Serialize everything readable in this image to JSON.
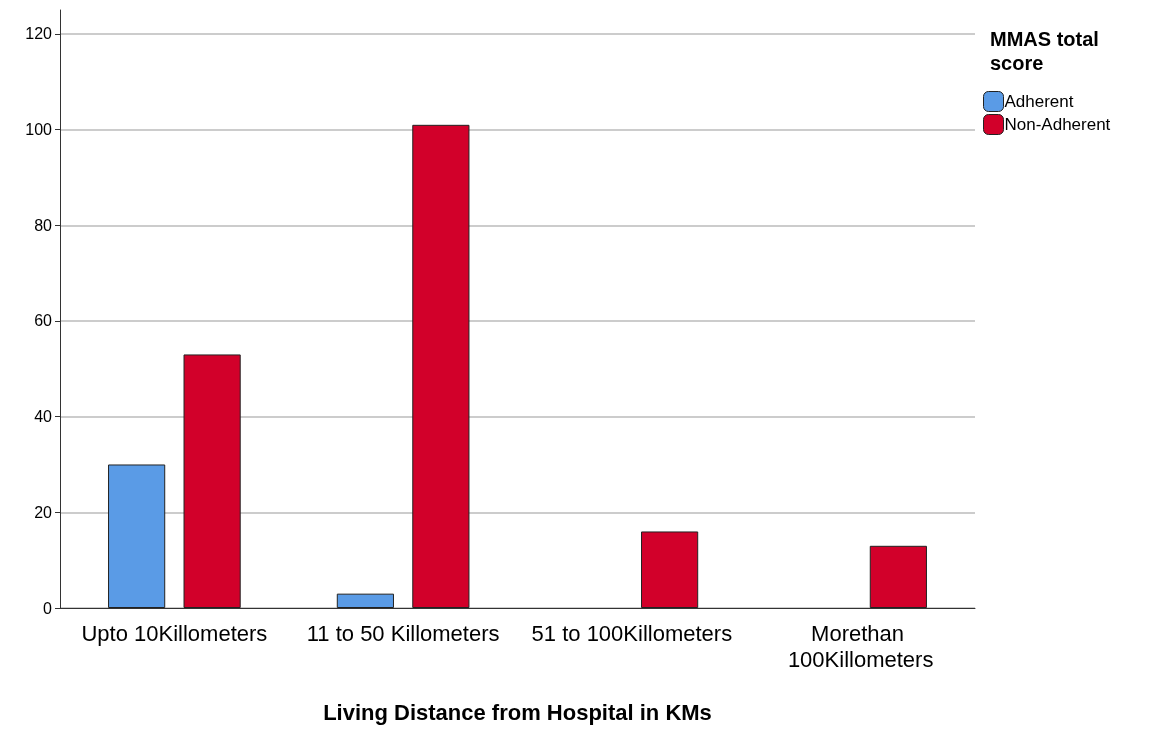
{
  "chart_data": {
    "type": "bar",
    "xlabel": "Living Distance from Hospital in KMs",
    "legend_title": "MMAS total score",
    "categories": [
      "Upto 10Killometers",
      "11 to 50 Killometers",
      "51 to 100Killometers",
      "Morethan 100Killometers"
    ],
    "series": [
      {
        "name": "Adherent",
        "color": "#5a9be6",
        "values": [
          30,
          3,
          null,
          null
        ]
      },
      {
        "name": "Non-Adherent",
        "color": "#d2002a",
        "values": [
          53,
          101,
          16,
          13
        ]
      }
    ],
    "ylim": [
      0,
      125
    ],
    "yticks": [
      0,
      20,
      40,
      60,
      80,
      100,
      120
    ],
    "grid": "y",
    "legend": "top right"
  }
}
